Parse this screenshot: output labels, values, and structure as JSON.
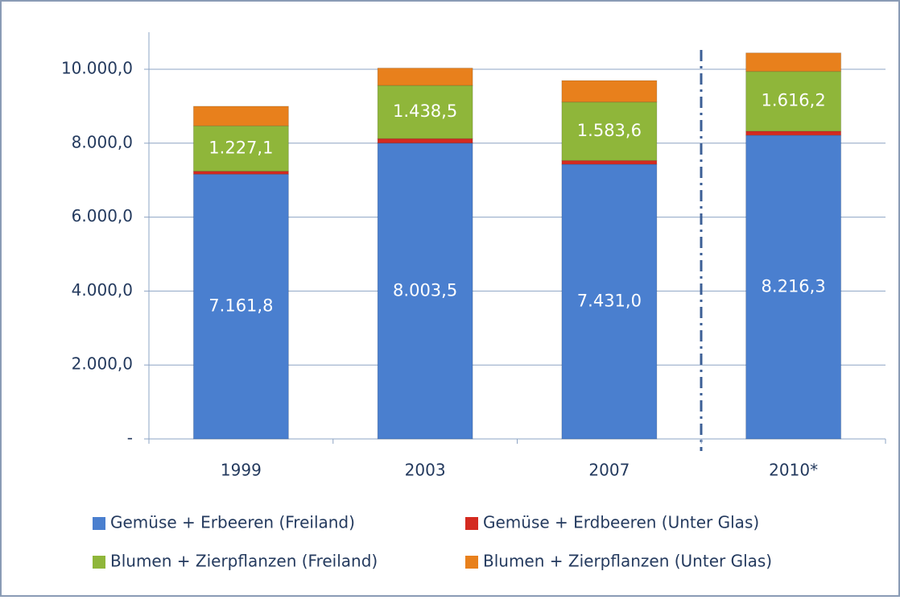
{
  "chart_data": {
    "type": "stacked_bar",
    "categories": [
      "1999",
      "2003",
      "2007",
      "2010*"
    ],
    "series": [
      {
        "name": "Gemüse + Erbeeren (Freiland)",
        "color": "#4a7fcf",
        "values": [
          7161.8,
          8003.5,
          7431.0,
          8216.3
        ],
        "value_labels": [
          "7.161,8",
          "8.003,5",
          "7.431,0",
          "8.216,3"
        ]
      },
      {
        "name": "Gemüse + Erdbeeren (Unter Glas)",
        "color": "#d42a20",
        "values": [
          80,
          120,
          100,
          110
        ]
      },
      {
        "name": "Blumen + Zierpflanzen (Freiland)",
        "color": "#8fb63a",
        "values": [
          1227.1,
          1438.5,
          1583.6,
          1616.2
        ],
        "value_labels": [
          "1.227,1",
          "1.438,5",
          "1.583,6",
          "1.616,2"
        ]
      },
      {
        "name": "Blumen + Zierpflanzen (Unter Glas)",
        "color": "#e8801c",
        "values": [
          530,
          470,
          580,
          500
        ]
      }
    ],
    "ylim": [
      0,
      10000
    ],
    "yticks": [
      {
        "value": 0,
        "label": "-"
      },
      {
        "value": 2000,
        "label": "2.000,0"
      },
      {
        "value": 4000,
        "label": "4.000,0"
      },
      {
        "value": 6000,
        "label": "6.000,0"
      },
      {
        "value": 8000,
        "label": "8.000,0"
      },
      {
        "value": 10000,
        "label": "10.000,0"
      }
    ],
    "grid": true
  }
}
